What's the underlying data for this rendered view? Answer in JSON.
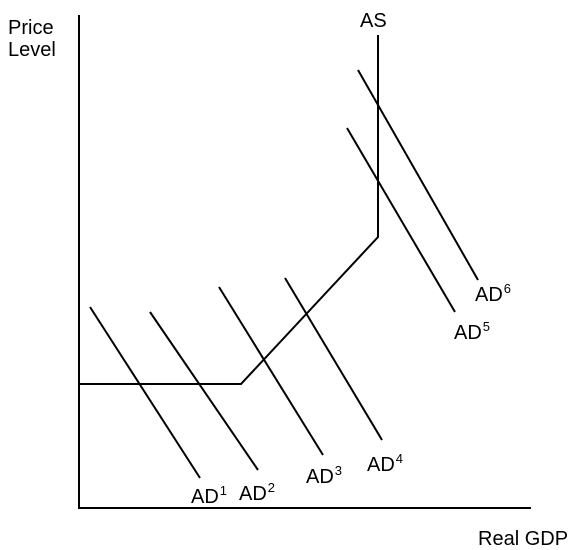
{
  "axes": {
    "y_label": [
      "Price",
      "Level"
    ],
    "x_label": "Real GDP"
  },
  "supply": {
    "label": "AS"
  },
  "demand": [
    {
      "label": "AD",
      "sup": "1"
    },
    {
      "label": "AD",
      "sup": "2"
    },
    {
      "label": "AD",
      "sup": "3"
    },
    {
      "label": "AD",
      "sup": "4"
    },
    {
      "label": "AD",
      "sup": "5"
    },
    {
      "label": "AD",
      "sup": "6"
    }
  ]
}
